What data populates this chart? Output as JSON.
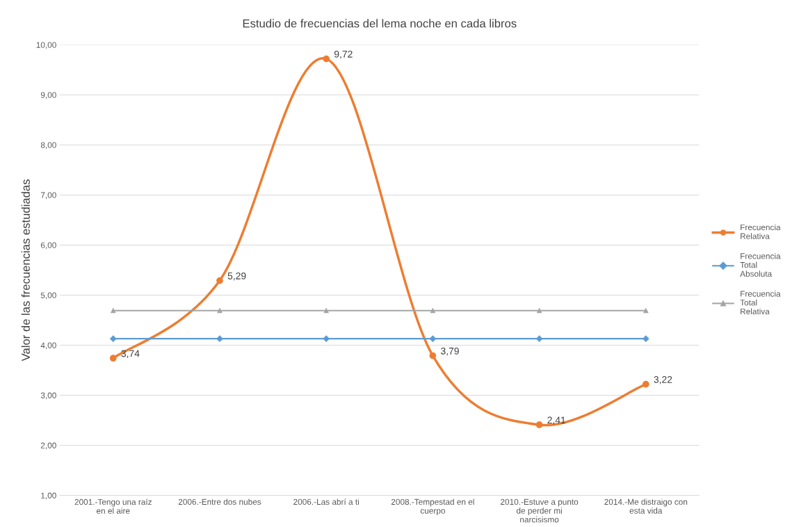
{
  "chart_data": {
    "type": "line",
    "title": "Estudio de frecuencias del lema noche en cada libros",
    "ylabel": "Valor de las frecuencias estudiadas",
    "categories": [
      "2001.-Tengo una raíz en el aire",
      "2006.-Entre dos nubes",
      "2006.-Las abrí a ti",
      "2008.-Tempestad en el cuerpo",
      "2010.-Estuve a punto de perder mi narcisismo",
      "2014.-Me distraigo con esta vida"
    ],
    "series": [
      {
        "name": "Frecuencia Relativa",
        "color": "#ed7d31",
        "marker": "circle",
        "values": [
          3.74,
          5.29,
          9.72,
          3.79,
          2.41,
          3.22
        ],
        "value_labels": [
          "3,74",
          "5,29",
          "9,72",
          "3,79",
          "2,41",
          "3,22"
        ]
      },
      {
        "name": "Frecuencia Total Absoluta",
        "color": "#5b9bd5",
        "marker": "diamond",
        "values": [
          4.13,
          4.13,
          4.13,
          4.13,
          4.13,
          4.13
        ]
      },
      {
        "name": "Frecuencia Total Relativa",
        "color": "#a5a5a5",
        "marker": "triangle",
        "values": [
          4.69,
          4.69,
          4.69,
          4.69,
          4.69,
          4.69
        ]
      }
    ],
    "ylim": [
      1,
      10
    ],
    "yticks": [
      {
        "value": 1,
        "label": "1,00"
      },
      {
        "value": 2,
        "label": "2,00"
      },
      {
        "value": 3,
        "label": "3,00"
      },
      {
        "value": 4,
        "label": "4,00"
      },
      {
        "value": 5,
        "label": "5,00"
      },
      {
        "value": 6,
        "label": "6,00"
      },
      {
        "value": 7,
        "label": "7,00"
      },
      {
        "value": 8,
        "label": "8,00"
      },
      {
        "value": 9,
        "label": "9,00"
      },
      {
        "value": 10,
        "label": "10,00"
      }
    ],
    "grid": "y",
    "legend": "right"
  }
}
